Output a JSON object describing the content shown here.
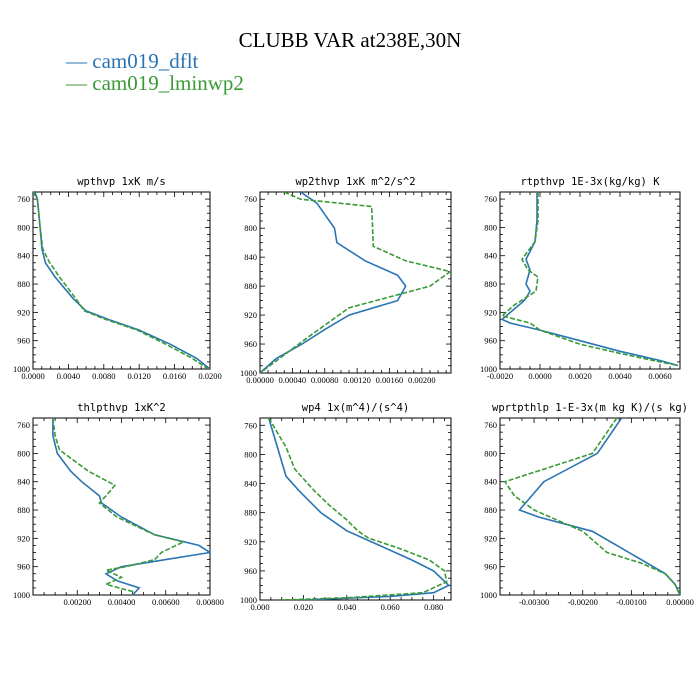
{
  "page_title": "CLUBB VAR at238E,30N",
  "legend": [
    {
      "label": "cam019_dflt",
      "color": "#2a74b3"
    },
    {
      "label": "cam019_lminwp2",
      "color": "#3a9a36"
    }
  ],
  "chart_data": [
    {
      "type": "line",
      "title": "wpthvp  1xK m/s",
      "xlim": [
        0,
        0.02
      ],
      "ylim": [
        1000,
        750
      ],
      "xticks": [
        0.0,
        0.004,
        0.008,
        0.012,
        0.016,
        0.02
      ],
      "xtick_labels": [
        "0.0000",
        "0.0040",
        "0.0080",
        "0.0120",
        "0.0160",
        "0.0200"
      ],
      "yticks": [
        760,
        800,
        840,
        880,
        920,
        960,
        1000
      ],
      "ytick_labels": [
        "760",
        "800",
        "840",
        "880",
        "920",
        "960",
        "1000"
      ],
      "series": [
        {
          "color": "#2a74b3",
          "dash": "",
          "points": [
            [
              0.0002,
              750
            ],
            [
              0.0005,
              760
            ],
            [
              0.0008,
              800
            ],
            [
              0.001,
              830
            ],
            [
              0.0014,
              850
            ],
            [
              0.0025,
              870
            ],
            [
              0.0045,
              900
            ],
            [
              0.006,
              918
            ],
            [
              0.0085,
              930
            ],
            [
              0.012,
              945
            ],
            [
              0.0155,
              965
            ],
            [
              0.0185,
              985
            ],
            [
              0.02,
              1000
            ]
          ]
        },
        {
          "color": "#3a9a36",
          "dash": "5,2",
          "points": [
            [
              0.0,
              750
            ],
            [
              0.0005,
              760
            ],
            [
              0.0008,
              800
            ],
            [
              0.0011,
              830
            ],
            [
              0.0018,
              848
            ],
            [
              0.003,
              870
            ],
            [
              0.0048,
              900
            ],
            [
              0.0058,
              918
            ],
            [
              0.0082,
              930
            ],
            [
              0.0118,
              945
            ],
            [
              0.015,
              965
            ],
            [
              0.018,
              985
            ],
            [
              0.0198,
              1000
            ]
          ]
        }
      ]
    },
    {
      "type": "line",
      "title": "wp2thvp  1xK m^2/s^2",
      "xlim": [
        0,
        0.00236
      ],
      "ylim": [
        1000,
        750
      ],
      "xticks": [
        0.0,
        0.0004,
        0.0008,
        0.0012,
        0.0016,
        0.002
      ],
      "xtick_labels": [
        "0.00000",
        "0.00040",
        "0.00080",
        "0.00120",
        "0.00160",
        "0.00200"
      ],
      "yticks": [
        760,
        800,
        840,
        880,
        920,
        960,
        1000
      ],
      "ytick_labels": [
        "760",
        "800",
        "840",
        "880",
        "920",
        "960",
        "1000"
      ],
      "series": [
        {
          "color": "#2a74b3",
          "dash": "",
          "points": [
            [
              0.0005,
              750
            ],
            [
              0.0007,
              765
            ],
            [
              0.00092,
              800
            ],
            [
              0.00095,
              820
            ],
            [
              0.0013,
              845
            ],
            [
              0.0017,
              865
            ],
            [
              0.0018,
              880
            ],
            [
              0.0017,
              900
            ],
            [
              0.0011,
              920
            ],
            [
              0.0008,
              940
            ],
            [
              0.00052,
              960
            ],
            [
              0.0002,
              980
            ],
            [
              0.0,
              1000
            ]
          ]
        },
        {
          "color": "#3a9a36",
          "dash": "5,2",
          "points": [
            [
              0.0003,
              750
            ],
            [
              0.0005,
              760
            ],
            [
              0.00138,
              770
            ],
            [
              0.0014,
              825
            ],
            [
              0.0018,
              845
            ],
            [
              0.00235,
              860
            ],
            [
              0.0021,
              880
            ],
            [
              0.0011,
              910
            ],
            [
              0.00085,
              930
            ],
            [
              0.0006,
              950
            ],
            [
              0.0003,
              975
            ],
            [
              0.0,
              1000
            ]
          ]
        }
      ]
    },
    {
      "type": "line",
      "title": "rtpthvp  1E-3x(kg/kg) K",
      "xlim": [
        -0.002,
        0.007
      ],
      "ylim": [
        1000,
        750
      ],
      "xticks": [
        -0.002,
        0.0,
        0.002,
        0.004,
        0.006
      ],
      "xtick_labels": [
        "-0.0020",
        "0.0000",
        "0.0020",
        "0.0040",
        "0.0060"
      ],
      "yticks": [
        760,
        800,
        840,
        880,
        920,
        960,
        1000
      ],
      "ytick_labels": [
        "760",
        "800",
        "840",
        "880",
        "920",
        "960",
        "1000"
      ],
      "series": [
        {
          "color": "#2a74b3",
          "dash": "",
          "points": [
            [
              -0.00015,
              750
            ],
            [
              -0.00015,
              790
            ],
            [
              -0.00025,
              820
            ],
            [
              -0.0007,
              845
            ],
            [
              -0.0005,
              860
            ],
            [
              -0.0007,
              880
            ],
            [
              -0.0005,
              890
            ],
            [
              -0.0007,
              900
            ],
            [
              -0.00085,
              905
            ],
            [
              -0.0019,
              930
            ],
            [
              -0.0015,
              935
            ],
            [
              0.0,
              945
            ],
            [
              0.002,
              960
            ],
            [
              0.004,
              975
            ],
            [
              0.006,
              988
            ],
            [
              0.0069,
              995
            ]
          ]
        },
        {
          "color": "#3a9a36",
          "dash": "5,2",
          "points": [
            [
              -0.0001,
              750
            ],
            [
              -0.0001,
              790
            ],
            [
              -0.00025,
              820
            ],
            [
              -0.0009,
              845
            ],
            [
              -0.0006,
              860
            ],
            [
              -0.0001,
              870
            ],
            [
              -0.0002,
              890
            ],
            [
              -0.0013,
              910
            ],
            [
              -0.0019,
              925
            ],
            [
              -0.0005,
              935
            ],
            [
              0.0,
              945
            ],
            [
              0.002,
              965
            ],
            [
              0.004,
              978
            ],
            [
              0.006,
              990
            ],
            [
              0.0069,
              995
            ]
          ]
        }
      ]
    },
    {
      "type": "line",
      "title": "thlpthvp  1xK^2",
      "xlim": [
        0,
        0.008
      ],
      "ylim": [
        1000,
        750
      ],
      "xticks": [
        0.002,
        0.004,
        0.006,
        0.008
      ],
      "xtick_labels": [
        "0.00200",
        "0.00400",
        "0.00600",
        "0.00800"
      ],
      "yticks": [
        760,
        800,
        840,
        880,
        920,
        960,
        1000
      ],
      "ytick_labels": [
        "760",
        "800",
        "840",
        "880",
        "920",
        "960",
        "1000"
      ],
      "series": [
        {
          "color": "#2a74b3",
          "dash": "",
          "points": [
            [
              0.0009,
              750
            ],
            [
              0.0009,
              775
            ],
            [
              0.0011,
              800
            ],
            [
              0.0017,
              825
            ],
            [
              0.0022,
              840
            ],
            [
              0.003,
              860
            ],
            [
              0.0031,
              870
            ],
            [
              0.004,
              890
            ],
            [
              0.0055,
              915
            ],
            [
              0.0075,
              930
            ],
            [
              0.008,
              940
            ],
            [
              0.006,
              950
            ],
            [
              0.004,
              960
            ],
            [
              0.0033,
              970
            ],
            [
              0.0038,
              980
            ],
            [
              0.0048,
              990
            ],
            [
              0.0045,
              1000
            ]
          ]
        },
        {
          "color": "#3a9a36",
          "dash": "5,2",
          "points": [
            [
              0.0009,
              750
            ],
            [
              0.001,
              775
            ],
            [
              0.0012,
              795
            ],
            [
              0.0025,
              825
            ],
            [
              0.0037,
              845
            ],
            [
              0.0033,
              860
            ],
            [
              0.003,
              870
            ],
            [
              0.0038,
              890
            ],
            [
              0.0055,
              915
            ],
            [
              0.0068,
              925
            ],
            [
              0.0058,
              940
            ],
            [
              0.0055,
              950
            ],
            [
              0.0042,
              960
            ],
            [
              0.0033,
              965
            ],
            [
              0.004,
              975
            ],
            [
              0.0033,
              985
            ],
            [
              0.0045,
              995
            ],
            [
              0.0045,
              1000
            ]
          ]
        }
      ]
    },
    {
      "type": "line",
      "title": "wp4  1x(m^4)/(s^4)",
      "xlim": [
        0,
        0.088
      ],
      "ylim": [
        1000,
        750
      ],
      "xticks": [
        0.0,
        0.02,
        0.04,
        0.06,
        0.08
      ],
      "xtick_labels": [
        "0.000",
        "0.020",
        "0.040",
        "0.060",
        "0.080"
      ],
      "yticks": [
        760,
        800,
        840,
        880,
        920,
        960,
        1000
      ],
      "ytick_labels": [
        "760",
        "800",
        "840",
        "880",
        "920",
        "960",
        "1000"
      ],
      "series": [
        {
          "color": "#2a74b3",
          "dash": "",
          "points": [
            [
              0.004,
              750
            ],
            [
              0.008,
              790
            ],
            [
              0.012,
              830
            ],
            [
              0.018,
              850
            ],
            [
              0.028,
              880
            ],
            [
              0.04,
              905
            ],
            [
              0.055,
              925
            ],
            [
              0.07,
              945
            ],
            [
              0.08,
              960
            ],
            [
              0.087,
              980
            ],
            [
              0.08,
              990
            ],
            [
              0.06,
              995
            ],
            [
              0.02,
              1000
            ]
          ]
        },
        {
          "color": "#3a9a36",
          "dash": "5,2",
          "points": [
            [
              0.004,
              750
            ],
            [
              0.012,
              790
            ],
            [
              0.016,
              820
            ],
            [
              0.025,
              850
            ],
            [
              0.032,
              870
            ],
            [
              0.04,
              890
            ],
            [
              0.045,
              905
            ],
            [
              0.05,
              915
            ],
            [
              0.065,
              930
            ],
            [
              0.078,
              945
            ],
            [
              0.085,
              960
            ],
            [
              0.086,
              975
            ],
            [
              0.075,
              990
            ],
            [
              0.04,
              997
            ],
            [
              0.01,
              1000
            ]
          ]
        }
      ]
    },
    {
      "type": "line",
      "title": "wprtpthlp  1-E-3x(m kg K)/(s kg)",
      "xlim": [
        -0.0037,
        0.0
      ],
      "ylim": [
        1000,
        750
      ],
      "xticks": [
        -0.003,
        -0.002,
        -0.001,
        0.0
      ],
      "xtick_labels": [
        "-0.00300",
        "-0.00200",
        "-0.00100",
        "0.00000"
      ],
      "yticks": [
        760,
        800,
        840,
        880,
        920,
        960,
        1000
      ],
      "ytick_labels": [
        "760",
        "800",
        "840",
        "880",
        "920",
        "960",
        "1000"
      ],
      "series": [
        {
          "color": "#2a74b3",
          "dash": "",
          "points": [
            [
              -0.0012,
              750
            ],
            [
              -0.0017,
              800
            ],
            [
              -0.0028,
              840
            ],
            [
              -0.0033,
              880
            ],
            [
              -0.0029,
              890
            ],
            [
              -0.0018,
              910
            ],
            [
              -0.0013,
              930
            ],
            [
              -0.0008,
              950
            ],
            [
              -0.0003,
              970
            ],
            [
              -0.0001,
              985
            ],
            [
              0.0,
              1000
            ]
          ]
        },
        {
          "color": "#3a9a36",
          "dash": "5,2",
          "points": [
            [
              -0.0013,
              750
            ],
            [
              -0.0018,
              800
            ],
            [
              -0.0027,
              820
            ],
            [
              -0.0036,
              840
            ],
            [
              -0.0034,
              860
            ],
            [
              -0.003,
              880
            ],
            [
              -0.002,
              910
            ],
            [
              -0.0015,
              940
            ],
            [
              -0.0008,
              955
            ],
            [
              -0.0003,
              970
            ],
            [
              -0.0001,
              985
            ],
            [
              0.0,
              1000
            ]
          ]
        }
      ]
    }
  ]
}
